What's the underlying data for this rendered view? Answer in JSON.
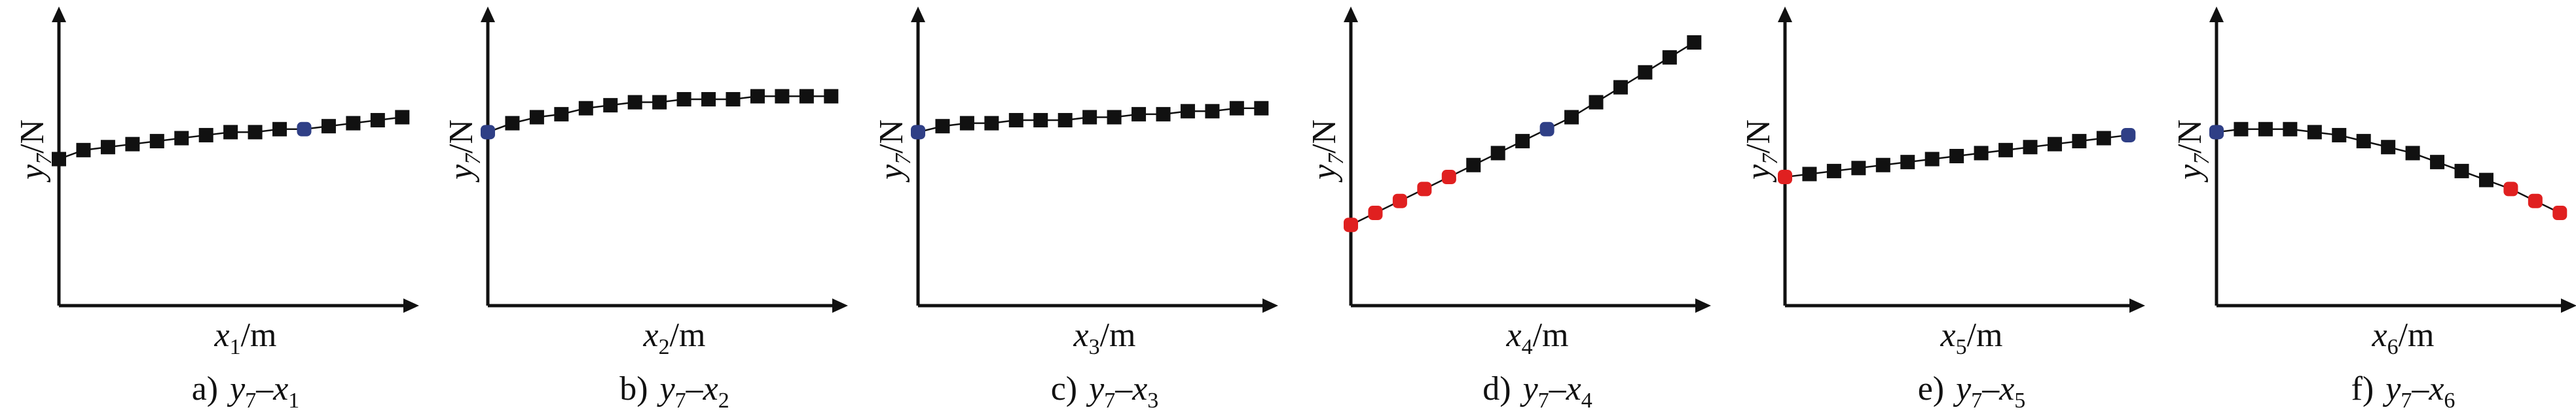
{
  "colors": {
    "default": "#111111",
    "blue": "#2f3f86",
    "red": "#e02020"
  },
  "chart_data": [
    {
      "type": "scatter",
      "caption": {
        "prefix": "a)",
        "y": "y",
        "y_sub": "7",
        "dash": "–",
        "x": "x",
        "x_sub": "1"
      },
      "xlabel": {
        "main": "x",
        "sub": "1",
        "unit": "/m"
      },
      "ylabel": {
        "main": "y",
        "sub": "7",
        "unit": "/N"
      },
      "xlim": [
        0,
        1
      ],
      "ylim": [
        0,
        1
      ],
      "points": [
        {
          "x": 0.0,
          "y": 0.49,
          "c": "default"
        },
        {
          "x": 0.07,
          "y": 0.52,
          "c": "default"
        },
        {
          "x": 0.14,
          "y": 0.53,
          "c": "default"
        },
        {
          "x": 0.21,
          "y": 0.54,
          "c": "default"
        },
        {
          "x": 0.28,
          "y": 0.55,
          "c": "default"
        },
        {
          "x": 0.35,
          "y": 0.56,
          "c": "default"
        },
        {
          "x": 0.42,
          "y": 0.57,
          "c": "default"
        },
        {
          "x": 0.49,
          "y": 0.58,
          "c": "default"
        },
        {
          "x": 0.56,
          "y": 0.58,
          "c": "default"
        },
        {
          "x": 0.63,
          "y": 0.59,
          "c": "default"
        },
        {
          "x": 0.7,
          "y": 0.59,
          "c": "blue"
        },
        {
          "x": 0.77,
          "y": 0.6,
          "c": "default"
        },
        {
          "x": 0.84,
          "y": 0.61,
          "c": "default"
        },
        {
          "x": 0.91,
          "y": 0.62,
          "c": "default"
        },
        {
          "x": 0.98,
          "y": 0.63,
          "c": "default"
        }
      ]
    },
    {
      "type": "scatter",
      "caption": {
        "prefix": "b)",
        "y": "y",
        "y_sub": "7",
        "dash": "–",
        "x": "x",
        "x_sub": "2"
      },
      "xlabel": {
        "main": "x",
        "sub": "2",
        "unit": "/m"
      },
      "ylabel": {
        "main": "y",
        "sub": "7",
        "unit": "/N"
      },
      "xlim": [
        0,
        1
      ],
      "ylim": [
        0,
        1
      ],
      "points": [
        {
          "x": 0.0,
          "y": 0.58,
          "c": "blue"
        },
        {
          "x": 0.07,
          "y": 0.61,
          "c": "default"
        },
        {
          "x": 0.14,
          "y": 0.63,
          "c": "default"
        },
        {
          "x": 0.21,
          "y": 0.64,
          "c": "default"
        },
        {
          "x": 0.28,
          "y": 0.66,
          "c": "default"
        },
        {
          "x": 0.35,
          "y": 0.67,
          "c": "default"
        },
        {
          "x": 0.42,
          "y": 0.68,
          "c": "default"
        },
        {
          "x": 0.49,
          "y": 0.68,
          "c": "default"
        },
        {
          "x": 0.56,
          "y": 0.69,
          "c": "default"
        },
        {
          "x": 0.63,
          "y": 0.69,
          "c": "default"
        },
        {
          "x": 0.7,
          "y": 0.69,
          "c": "default"
        },
        {
          "x": 0.77,
          "y": 0.7,
          "c": "default"
        },
        {
          "x": 0.84,
          "y": 0.7,
          "c": "default"
        },
        {
          "x": 0.91,
          "y": 0.7,
          "c": "default"
        },
        {
          "x": 0.98,
          "y": 0.7,
          "c": "default"
        }
      ]
    },
    {
      "type": "scatter",
      "caption": {
        "prefix": "c)",
        "y": "y",
        "y_sub": "7",
        "dash": "–",
        "x": "x",
        "x_sub": "3"
      },
      "xlabel": {
        "main": "x",
        "sub": "3",
        "unit": "/m"
      },
      "ylabel": {
        "main": "y",
        "sub": "7",
        "unit": "/N"
      },
      "xlim": [
        0,
        1
      ],
      "ylim": [
        0,
        1
      ],
      "points": [
        {
          "x": 0.0,
          "y": 0.58,
          "c": "blue"
        },
        {
          "x": 0.07,
          "y": 0.6,
          "c": "default"
        },
        {
          "x": 0.14,
          "y": 0.61,
          "c": "default"
        },
        {
          "x": 0.21,
          "y": 0.61,
          "c": "default"
        },
        {
          "x": 0.28,
          "y": 0.62,
          "c": "default"
        },
        {
          "x": 0.35,
          "y": 0.62,
          "c": "default"
        },
        {
          "x": 0.42,
          "y": 0.62,
          "c": "default"
        },
        {
          "x": 0.49,
          "y": 0.63,
          "c": "default"
        },
        {
          "x": 0.56,
          "y": 0.63,
          "c": "default"
        },
        {
          "x": 0.63,
          "y": 0.64,
          "c": "default"
        },
        {
          "x": 0.7,
          "y": 0.64,
          "c": "default"
        },
        {
          "x": 0.77,
          "y": 0.65,
          "c": "default"
        },
        {
          "x": 0.84,
          "y": 0.65,
          "c": "default"
        },
        {
          "x": 0.91,
          "y": 0.66,
          "c": "default"
        },
        {
          "x": 0.98,
          "y": 0.66,
          "c": "default"
        }
      ]
    },
    {
      "type": "scatter",
      "caption": {
        "prefix": "d)",
        "y": "y",
        "y_sub": "7",
        "dash": "–",
        "x": "x",
        "x_sub": "4"
      },
      "xlabel": {
        "main": "x",
        "sub": "4",
        "unit": "/m"
      },
      "ylabel": {
        "main": "y",
        "sub": "7",
        "unit": "/N"
      },
      "xlim": [
        0,
        1
      ],
      "ylim": [
        0,
        1
      ],
      "points": [
        {
          "x": 0.0,
          "y": 0.27,
          "c": "red"
        },
        {
          "x": 0.07,
          "y": 0.31,
          "c": "red"
        },
        {
          "x": 0.14,
          "y": 0.35,
          "c": "red"
        },
        {
          "x": 0.21,
          "y": 0.39,
          "c": "red"
        },
        {
          "x": 0.28,
          "y": 0.43,
          "c": "red"
        },
        {
          "x": 0.35,
          "y": 0.47,
          "c": "default"
        },
        {
          "x": 0.42,
          "y": 0.51,
          "c": "default"
        },
        {
          "x": 0.49,
          "y": 0.55,
          "c": "default"
        },
        {
          "x": 0.56,
          "y": 0.59,
          "c": "blue"
        },
        {
          "x": 0.63,
          "y": 0.63,
          "c": "default"
        },
        {
          "x": 0.7,
          "y": 0.68,
          "c": "default"
        },
        {
          "x": 0.77,
          "y": 0.73,
          "c": "default"
        },
        {
          "x": 0.84,
          "y": 0.78,
          "c": "default"
        },
        {
          "x": 0.91,
          "y": 0.83,
          "c": "default"
        },
        {
          "x": 0.98,
          "y": 0.88,
          "c": "default"
        }
      ]
    },
    {
      "type": "scatter",
      "caption": {
        "prefix": "e)",
        "y": "y",
        "y_sub": "7",
        "dash": "–",
        "x": "x",
        "x_sub": "5"
      },
      "xlabel": {
        "main": "x",
        "sub": "5",
        "unit": "/m"
      },
      "ylabel": {
        "main": "y",
        "sub": "7",
        "unit": "/N"
      },
      "xlim": [
        0,
        1
      ],
      "ylim": [
        0,
        1
      ],
      "points": [
        {
          "x": 0.0,
          "y": 0.43,
          "c": "red"
        },
        {
          "x": 0.07,
          "y": 0.44,
          "c": "default"
        },
        {
          "x": 0.14,
          "y": 0.45,
          "c": "default"
        },
        {
          "x": 0.21,
          "y": 0.46,
          "c": "default"
        },
        {
          "x": 0.28,
          "y": 0.47,
          "c": "default"
        },
        {
          "x": 0.35,
          "y": 0.48,
          "c": "default"
        },
        {
          "x": 0.42,
          "y": 0.49,
          "c": "default"
        },
        {
          "x": 0.49,
          "y": 0.5,
          "c": "default"
        },
        {
          "x": 0.56,
          "y": 0.51,
          "c": "default"
        },
        {
          "x": 0.63,
          "y": 0.52,
          "c": "default"
        },
        {
          "x": 0.7,
          "y": 0.53,
          "c": "default"
        },
        {
          "x": 0.77,
          "y": 0.54,
          "c": "default"
        },
        {
          "x": 0.84,
          "y": 0.55,
          "c": "default"
        },
        {
          "x": 0.91,
          "y": 0.56,
          "c": "default"
        },
        {
          "x": 0.98,
          "y": 0.57,
          "c": "blue"
        }
      ]
    },
    {
      "type": "scatter",
      "caption": {
        "prefix": "f)",
        "y": "y",
        "y_sub": "7",
        "dash": "–",
        "x": "x",
        "x_sub": "6"
      },
      "xlabel": {
        "main": "x",
        "sub": "6",
        "unit": "/m"
      },
      "ylabel": {
        "main": "y",
        "sub": "7",
        "unit": "/N"
      },
      "xlim": [
        0,
        1
      ],
      "ylim": [
        0,
        1
      ],
      "points": [
        {
          "x": 0.0,
          "y": 0.58,
          "c": "blue"
        },
        {
          "x": 0.07,
          "y": 0.59,
          "c": "default"
        },
        {
          "x": 0.14,
          "y": 0.59,
          "c": "default"
        },
        {
          "x": 0.21,
          "y": 0.59,
          "c": "default"
        },
        {
          "x": 0.28,
          "y": 0.58,
          "c": "default"
        },
        {
          "x": 0.35,
          "y": 0.57,
          "c": "default"
        },
        {
          "x": 0.42,
          "y": 0.55,
          "c": "default"
        },
        {
          "x": 0.49,
          "y": 0.53,
          "c": "default"
        },
        {
          "x": 0.56,
          "y": 0.51,
          "c": "default"
        },
        {
          "x": 0.63,
          "y": 0.48,
          "c": "default"
        },
        {
          "x": 0.7,
          "y": 0.45,
          "c": "default"
        },
        {
          "x": 0.77,
          "y": 0.42,
          "c": "default"
        },
        {
          "x": 0.84,
          "y": 0.39,
          "c": "red"
        },
        {
          "x": 0.91,
          "y": 0.35,
          "c": "red"
        },
        {
          "x": 0.98,
          "y": 0.31,
          "c": "red"
        }
      ]
    }
  ]
}
